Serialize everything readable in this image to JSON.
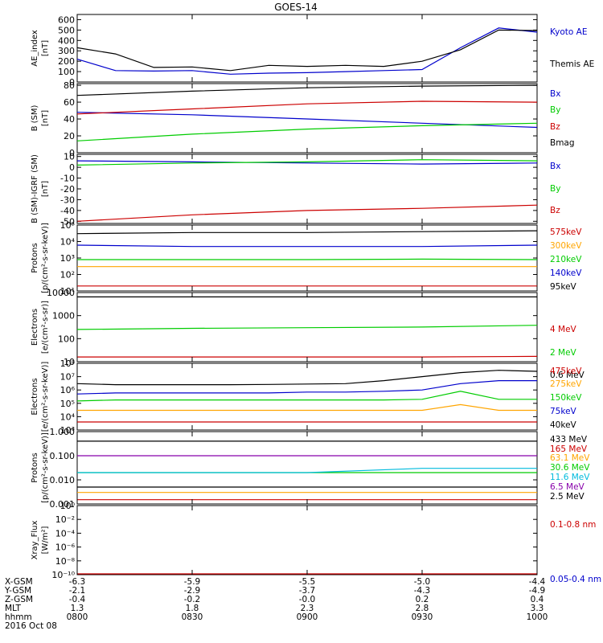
{
  "title": "GOES-14",
  "footer": {
    "rows": [
      {
        "label": "X-GSM",
        "values": [
          "-6.3",
          "-5.9",
          "-5.5",
          "-5.0",
          "-4.4"
        ]
      },
      {
        "label": "Y-GSM",
        "values": [
          "-2.1",
          "-2.9",
          "-3.7",
          "-4.3",
          "-4.9"
        ]
      },
      {
        "label": "Z-GSM",
        "values": [
          "-0.4",
          "-0.2",
          "-0.0",
          "0.2",
          "0.4"
        ]
      },
      {
        "label": "MLT",
        "values": [
          "1.3",
          "1.8",
          "2.3",
          "2.8",
          "3.3"
        ]
      },
      {
        "label": "hhmm",
        "values": [
          "0800",
          "0830",
          "0900",
          "0930",
          "1000"
        ]
      }
    ],
    "date": "2016 Oct 08"
  },
  "chart_data": [
    {
      "type": "line",
      "ylabel": "AE_index\n[nT]",
      "yscale": "linear",
      "ylim": [
        0,
        650
      ],
      "yticks": [
        "0",
        "100",
        "200",
        "300",
        "400",
        "500",
        "600"
      ],
      "x": [
        "0800",
        "0810",
        "0820",
        "0830",
        "0840",
        "0850",
        "0900",
        "0910",
        "0920",
        "0930",
        "0940",
        "0950",
        "1000"
      ],
      "series": [
        {
          "name": "Kyoto AE",
          "color": "#0000cc",
          "values": [
            220,
            110,
            105,
            110,
            75,
            85,
            90,
            100,
            110,
            120,
            330,
            520,
            480
          ]
        },
        {
          "name": "Themis AE",
          "color": "#000000",
          "values": [
            330,
            270,
            140,
            145,
            110,
            160,
            150,
            160,
            150,
            200,
            310,
            500,
            495
          ]
        }
      ]
    },
    {
      "type": "line",
      "ylabel": "B (SM)\n[nT]",
      "yscale": "linear",
      "ylim": [
        0,
        82
      ],
      "yticks": [
        "0",
        "20",
        "40",
        "60",
        "80"
      ],
      "x": [
        "0800",
        "0830",
        "0900",
        "0930",
        "1000"
      ],
      "series": [
        {
          "name": "Bx",
          "color": "#0000cc",
          "values": [
            48,
            45,
            40,
            35,
            30
          ]
        },
        {
          "name": "By",
          "color": "#00cc00",
          "values": [
            14,
            22,
            28,
            32,
            35
          ]
        },
        {
          "name": "Bz",
          "color": "#cc0000",
          "values": [
            46,
            52,
            58,
            61,
            60
          ]
        },
        {
          "name": "Bmag",
          "color": "#000000",
          "values": [
            68,
            73,
            77,
            79,
            80
          ]
        }
      ]
    },
    {
      "type": "line",
      "ylabel": "B (SM)-IGRF (SM)\n[nT]",
      "yscale": "linear",
      "ylim": [
        -52,
        12
      ],
      "yticks": [
        "-50",
        "-40",
        "-30",
        "-20",
        "-10",
        "0",
        "10"
      ],
      "x": [
        "0800",
        "0830",
        "0900",
        "0930",
        "1000"
      ],
      "series": [
        {
          "name": "Bx",
          "color": "#0000cc",
          "values": [
            6,
            5,
            4,
            3,
            4
          ]
        },
        {
          "name": "By",
          "color": "#00cc00",
          "values": [
            2,
            4,
            5,
            7,
            6
          ]
        },
        {
          "name": "Bz",
          "color": "#cc0000",
          "values": [
            -50,
            -44,
            -40,
            -38,
            -35
          ]
        }
      ]
    },
    {
      "type": "line",
      "ylabel": "Protons\n[p/(cm²-s-sr-keV)]",
      "yscale": "log",
      "ylim": [
        10,
        100000
      ],
      "ytick_values": [
        1,
        2,
        3,
        4,
        5
      ],
      "yticks": [
        "10¹",
        "10²",
        "10³",
        "10⁴",
        "10⁵"
      ],
      "x": [
        "0800",
        "0830",
        "0900",
        "0930",
        "1000"
      ],
      "series": [
        {
          "name": "575keV",
          "color": "#cc0000",
          "values": [
            20,
            20,
            20,
            20,
            20
          ]
        },
        {
          "name": "300keV",
          "color": "#ffa500",
          "values": [
            300,
            300,
            300,
            300,
            300
          ]
        },
        {
          "name": "210keV",
          "color": "#00cc00",
          "values": [
            800,
            800,
            800,
            850,
            800
          ]
        },
        {
          "name": "140keV",
          "color": "#0000cc",
          "values": [
            6000,
            5000,
            5000,
            5000,
            6000
          ]
        },
        {
          "name": "95keV",
          "color": "#000000",
          "values": [
            30000,
            35000,
            35000,
            40000,
            45000
          ]
        }
      ]
    },
    {
      "type": "line",
      "ylabel": "Electrons\n[e/(cm²-s-sr)]",
      "yscale": "log",
      "ylim": [
        10,
        10000
      ],
      "ytick_values": [
        1,
        2,
        3,
        4
      ],
      "yticks": [
        "10",
        "100",
        "1000",
        "10000"
      ],
      "x": [
        "0800",
        "0830",
        "0900",
        "0930",
        "1000"
      ],
      "series": [
        {
          "name": "4 MeV",
          "color": "#cc0000",
          "values": [
            16,
            16,
            16,
            16,
            17
          ]
        },
        {
          "name": "2 MeV",
          "color": "#00cc00",
          "values": [
            250,
            280,
            300,
            320,
            380
          ]
        },
        {
          "name": "0.6 MeV",
          "color": "#000000",
          "values": [
            6500,
            6500,
            6500,
            6500,
            6500
          ]
        }
      ]
    },
    {
      "type": "line",
      "ylabel": "Electrons\n[e/(cm²-s-sr-keV)]",
      "yscale": "log",
      "ylim": [
        1000,
        100000000
      ],
      "ytick_values": [
        3,
        4,
        5,
        6,
        7,
        8
      ],
      "yticks": [
        "10³",
        "10⁴",
        "10⁵",
        "10⁶",
        "10⁷",
        "10⁸"
      ],
      "x": [
        "0800",
        "0810",
        "0820",
        "0830",
        "0840",
        "0850",
        "0900",
        "0910",
        "0920",
        "0930",
        "0940",
        "0950",
        "1000"
      ],
      "series": [
        {
          "name": "475keV",
          "color": "#cc0000",
          "values": [
            4000,
            4000,
            4000,
            4000,
            4000,
            4000,
            4000,
            4000,
            4000,
            4000,
            4000,
            4000,
            4000
          ]
        },
        {
          "name": "275keV",
          "color": "#ffa500",
          "values": [
            30000,
            30000,
            30000,
            30000,
            30000,
            30000,
            30000,
            30000,
            30000,
            30000,
            80000,
            30000,
            30000
          ]
        },
        {
          "name": "150keV",
          "color": "#00cc00",
          "values": [
            150000,
            180000,
            180000,
            180000,
            180000,
            180000,
            180000,
            180000,
            180000,
            200000,
            800000,
            200000,
            200000
          ]
        },
        {
          "name": "75keV",
          "color": "#0000cc",
          "values": [
            500000,
            600000,
            600000,
            600000,
            600000,
            600000,
            700000,
            700000,
            800000,
            1000000,
            3000000,
            5000000,
            5000000
          ]
        },
        {
          "name": "40keV",
          "color": "#000000",
          "values": [
            3000000,
            2500000,
            2500000,
            2500000,
            2500000,
            2600000,
            2800000,
            3000000,
            5000000,
            10000000,
            20000000,
            30000000,
            25000000
          ]
        }
      ]
    },
    {
      "type": "line",
      "ylabel": "Protons\n[p/(cm²-s-sr-keV)]",
      "yscale": "log",
      "ylim": [
        0.001,
        1
      ],
      "ytick_values": [
        -3,
        -2,
        -1,
        0
      ],
      "yticks": [
        "0.001",
        "0.010",
        "0.100",
        "1.000"
      ],
      "x": [
        "0800",
        "0830",
        "0900",
        "0930",
        "1000"
      ],
      "series": [
        {
          "name": "433 MeV",
          "color": "#000000",
          "values": [
            0.4,
            0.4,
            0.4,
            0.4,
            0.4
          ]
        },
        {
          "name": "165 MeV",
          "color": "#cc0000",
          "values": [
            0.0015,
            0.0015,
            0.0015,
            0.0015,
            0.0015
          ]
        },
        {
          "name": "63.1 MeV",
          "color": "#ffa500",
          "values": [
            0.003,
            0.003,
            0.003,
            0.003,
            0.003
          ]
        },
        {
          "name": "30.6 MeV",
          "color": "#00cc00",
          "values": [
            0.02,
            0.02,
            0.02,
            0.02,
            0.02
          ]
        },
        {
          "name": "11.6 MeV",
          "color": "#00bbdd",
          "values": [
            0.02,
            0.02,
            0.02,
            0.03,
            0.03
          ]
        },
        {
          "name": "6.5 MeV",
          "color": "#8800aa",
          "values": [
            0.1,
            0.1,
            0.1,
            0.1,
            0.1
          ]
        },
        {
          "name": "2.5 MeV",
          "color": "#000000",
          "values": [
            0.005,
            0.005,
            0.005,
            0.005,
            0.005
          ]
        }
      ]
    },
    {
      "type": "line",
      "ylabel": "Xray_Flux\n[W/m²]",
      "yscale": "log",
      "ylim": [
        1e-10,
        1
      ],
      "ytick_values": [
        -10,
        -8,
        -6,
        -4,
        -2,
        0
      ],
      "yticks": [
        "10⁻¹⁰",
        "10⁻⁸",
        "10⁻⁶",
        "10⁻⁴",
        "10⁻²",
        "10⁰"
      ],
      "x": [
        "0800",
        "0830",
        "0900",
        "0930",
        "1000"
      ],
      "series": [
        {
          "name": "0.1-0.8 nm",
          "color": "#cc0000",
          "values": [
            1.3e-10,
            1.3e-10,
            1.3e-10,
            1.3e-10,
            1.3e-10
          ]
        },
        {
          "name": "0.05-0.4 nm",
          "color": "#0000cc",
          "values": [
            null,
            null,
            null,
            null,
            null
          ]
        }
      ]
    }
  ]
}
